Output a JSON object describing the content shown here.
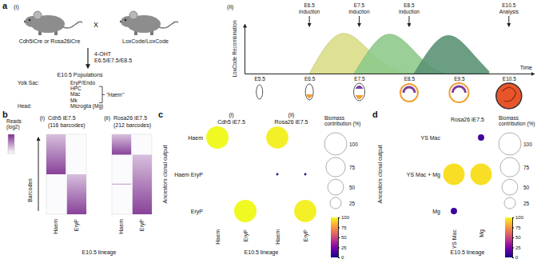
{
  "figure": {
    "panel_a": {
      "label": "a",
      "part_i": {
        "label": "(i)",
        "parent_1": "Cdh5iCre or Rosa26iCre",
        "cross": "X",
        "parent_2": "LoxCode/LoxCode",
        "treatment": [
          "4-OHT",
          "E6.5/E7.5/E8.5"
        ],
        "populations_title": "E10.5 Populations",
        "tissues": [
          {
            "name": "Yolk Sac:",
            "cells": [
              "EryP/Endo",
              "HPC",
              "Mac",
              "Mk"
            ]
          },
          {
            "name": "Head:",
            "cells": [
              "Microglia (Mg)"
            ]
          }
        ],
        "group": "\"Haem\""
      }
    }
  },
  "chart_data": [
    {
      "type": "area",
      "label": "(ii)",
      "xlabel": "Time",
      "ylabel": "LoxCode Recombination",
      "x": [
        6.5,
        6.8,
        7.1,
        7.4,
        7.7,
        8.0,
        8.3,
        8.6,
        8.9,
        9.2,
        9.5,
        9.8,
        10.1
      ],
      "xlim": [
        5.2,
        11.0
      ],
      "xticks": [
        {
          "value": 5.5,
          "label": "E5.5"
        },
        {
          "value": 6.5,
          "label": "E6.5"
        },
        {
          "value": 7.5,
          "label": "E7.5"
        },
        {
          "value": 8.5,
          "label": "E8.5"
        },
        {
          "value": 9.5,
          "label": "E9.5"
        },
        {
          "value": 10.5,
          "label": "E10.5"
        }
      ],
      "ylim": [
        0,
        1.1
      ],
      "yticks": [],
      "tick_labels": "x",
      "series": [
        {
          "color": "#dadd87",
          "values": [
            0,
            0.6,
            0.95,
            0.85,
            0.5,
            0.2,
            0.05,
            0,
            null,
            null,
            null,
            null,
            null
          ]
        },
        {
          "color": "#8fcb8c",
          "values": [
            null,
            null,
            null,
            0,
            0.55,
            0.92,
            0.85,
            0.5,
            0.15,
            0,
            null,
            null,
            null
          ]
        },
        {
          "color": "#5b9474",
          "values": [
            null,
            null,
            null,
            null,
            null,
            null,
            null,
            0,
            0.55,
            0.9,
            0.8,
            0.4,
            0.05
          ]
        }
      ],
      "annotations": [
        {
          "x": 6.5,
          "lines": [
            "E6.5",
            "induction"
          ]
        },
        {
          "x": 7.5,
          "lines": [
            "E7.5",
            "induction"
          ]
        },
        {
          "x": 8.5,
          "lines": [
            "E8.5",
            "induction"
          ]
        },
        {
          "x": 10.5,
          "lines": [
            "E10.5",
            "Analysis"
          ]
        }
      ]
    },
    {
      "type": "heatmap",
      "label": "b",
      "xlabel": "E10.5 lineage",
      "ylabel": "Barcodes",
      "tick_labels": "x",
      "colorbar": {
        "title": "Reads (log2)",
        "range": [
          0,
          10
        ]
      },
      "subplots": [
        {
          "label": "(i)",
          "title": "Cdh5 iE7.5",
          "subtitle": "(116 barcodes)",
          "categories": [
            "Haem",
            "EryP"
          ],
          "ylim": [
            0,
            116
          ],
          "blocks": [
            {
              "category": "Haem",
              "from": 0,
              "to": 58,
              "log2_reads": [
                3,
                9
              ]
            },
            {
              "category": "EryP",
              "from": 58,
              "to": 116,
              "log2_reads": [
                3,
                9
              ]
            }
          ]
        },
        {
          "label": "(ii)",
          "title": "Rosa26 iE7.5",
          "subtitle": "(212 barcodes)",
          "categories": [
            "Haem",
            "EryP"
          ],
          "ylim": [
            0,
            212
          ],
          "blocks": [
            {
              "category": "Haem",
              "from": 0,
              "to": 54,
              "log2_reads": [
                3,
                9
              ]
            },
            {
              "category": "Haem",
              "from": 131,
              "to": 132,
              "log2_reads": [
                5,
                5
              ]
            },
            {
              "category": "EryP",
              "from": 54,
              "to": 212,
              "log2_reads": [
                3,
                9
              ]
            }
          ]
        }
      ]
    },
    {
      "type": "bubble",
      "label": "c",
      "xlabel": "E10.5 lineage",
      "ylabel": "Ancestors clonal output",
      "rows": [
        "Haem",
        "Haem EryP",
        "EryP"
      ],
      "size_legend": {
        "title": "Biomass contribution (%)",
        "values": [
          100,
          75,
          50,
          25
        ]
      },
      "colorbar": {
        "range": [
          0,
          100
        ],
        "ticks": [
          0,
          25,
          50,
          75,
          100
        ]
      },
      "subplots": [
        {
          "label": "(i)",
          "title": "Cdh5 iE7.5",
          "categories": [
            "Haem",
            "EryP"
          ],
          "sizes": [
            [
              100,
              0
            ],
            [
              0,
              0
            ],
            [
              0,
              100
            ]
          ],
          "color_values": [
            [
              100,
              0
            ],
            [
              0,
              0
            ],
            [
              0,
              100
            ]
          ]
        },
        {
          "label": "(ii)",
          "title": "Rosa26 iE7.5",
          "categories": [
            "Haem",
            "EryP"
          ],
          "sizes": [
            [
              98,
              0
            ],
            [
              1,
              1
            ],
            [
              0,
              99
            ]
          ],
          "color_values": [
            [
              98,
              0
            ],
            [
              2,
              2
            ],
            [
              0,
              98
            ]
          ]
        }
      ]
    },
    {
      "type": "bubble",
      "label": "d",
      "xlabel": "E10.5 lineage",
      "ylabel": "Ancestors clonal output",
      "rows": [
        "YS Mac",
        "YS Mac + Mg",
        "Mg"
      ],
      "size_legend": {
        "title": "Biomass contribution (%)",
        "values": [
          100,
          75,
          50,
          25
        ]
      },
      "colorbar": {
        "range": [
          0,
          100
        ],
        "ticks": [
          0,
          25,
          50,
          75,
          100
        ]
      },
      "subplots": [
        {
          "title": "Rosa26 iE7.5",
          "categories": [
            "YS Mac",
            "Mg"
          ],
          "sizes": [
            [
              0,
              8
            ],
            [
              92,
              92
            ],
            [
              8,
              0
            ]
          ],
          "color_values": [
            [
              0,
              10
            ],
            [
              94,
              94
            ],
            [
              8,
              0
            ]
          ]
        }
      ]
    }
  ]
}
